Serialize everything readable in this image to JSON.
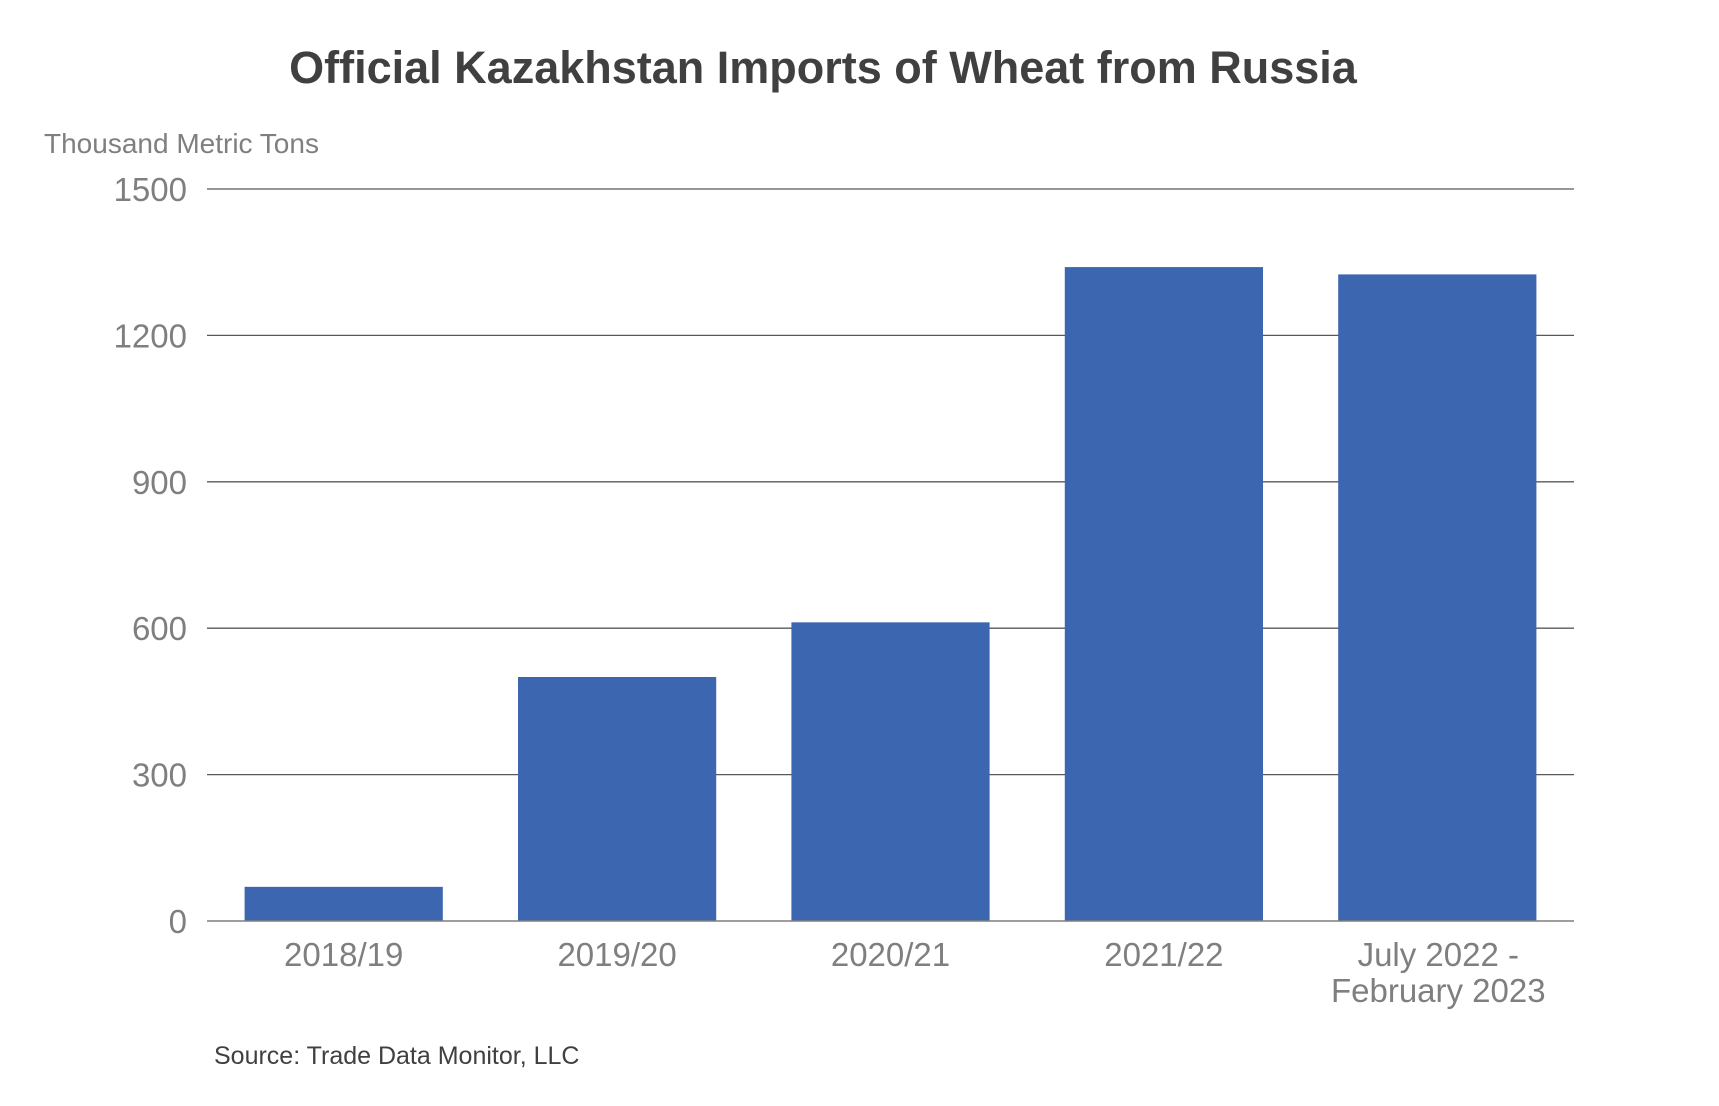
{
  "chart_data": {
    "type": "bar",
    "title": "Official Kazakhstan Imports of Wheat from Russia",
    "ylabel": "Thousand Metric Tons",
    "xlabel": "",
    "categories": [
      [
        "2018/19"
      ],
      [
        "2019/20"
      ],
      [
        "2020/21"
      ],
      [
        "2021/22"
      ],
      [
        "July 2022 -",
        "February 2023"
      ]
    ],
    "values": [
      70,
      500,
      612,
      1340,
      1325
    ],
    "ylim": [
      0,
      1500
    ],
    "yticks": [
      0,
      300,
      600,
      900,
      1200,
      1500
    ],
    "grid": true,
    "legend": "none",
    "bar_color": "#3d66b0",
    "source": "Source: Trade Data Monitor, LLC"
  }
}
